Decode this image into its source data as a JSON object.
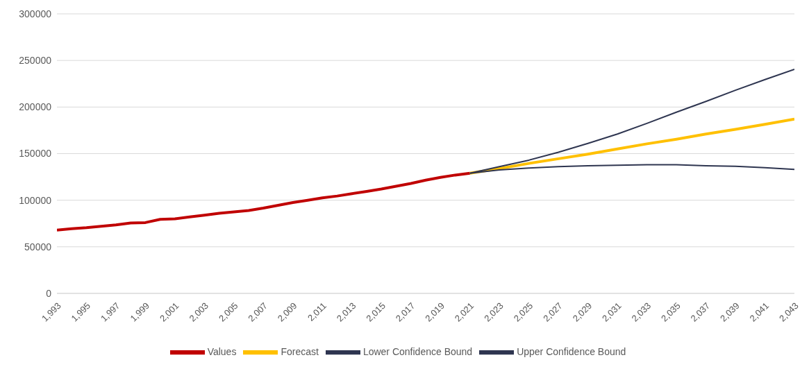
{
  "chart_data": {
    "type": "line",
    "xlim": [
      1993,
      2043
    ],
    "xticks": [
      {
        "value": 1993,
        "label": "1,993"
      },
      {
        "value": 1995,
        "label": "1,995"
      },
      {
        "value": 1997,
        "label": "1,997"
      },
      {
        "value": 1999,
        "label": "1,999"
      },
      {
        "value": 2001,
        "label": "2,001"
      },
      {
        "value": 2003,
        "label": "2,003"
      },
      {
        "value": 2005,
        "label": "2,005"
      },
      {
        "value": 2007,
        "label": "2,007"
      },
      {
        "value": 2009,
        "label": "2,009"
      },
      {
        "value": 2011,
        "label": "2,011"
      },
      {
        "value": 2013,
        "label": "2,013"
      },
      {
        "value": 2015,
        "label": "2,015"
      },
      {
        "value": 2017,
        "label": "2,017"
      },
      {
        "value": 2019,
        "label": "2,019"
      },
      {
        "value": 2021,
        "label": "2,021"
      },
      {
        "value": 2023,
        "label": "2,023"
      },
      {
        "value": 2025,
        "label": "2,025"
      },
      {
        "value": 2027,
        "label": "2,027"
      },
      {
        "value": 2029,
        "label": "2,029"
      },
      {
        "value": 2031,
        "label": "2,031"
      },
      {
        "value": 2033,
        "label": "2,033"
      },
      {
        "value": 2035,
        "label": "2,035"
      },
      {
        "value": 2037,
        "label": "2,037"
      },
      {
        "value": 2039,
        "label": "2,039"
      },
      {
        "value": 2041,
        "label": "2,041"
      },
      {
        "value": 2043,
        "label": "2,043"
      }
    ],
    "ylim": [
      0,
      300000
    ],
    "yticks": [
      0,
      50000,
      100000,
      150000,
      200000,
      250000,
      300000
    ],
    "grid": "y",
    "legend": "bottom",
    "marker": "none",
    "line_style": "solid",
    "series": [
      {
        "name": "Values",
        "color": "#c00000",
        "x": [
          1993,
          1994,
          1995,
          1996,
          1997,
          1998,
          1999,
          2000,
          2001,
          2002,
          2003,
          2004,
          2005,
          2006,
          2007,
          2008,
          2009,
          2010,
          2011,
          2012,
          2013,
          2014,
          2015,
          2016,
          2017,
          2018,
          2019,
          2020,
          2021
        ],
        "values": [
          68000,
          69500,
          70500,
          72000,
          73500,
          75500,
          76000,
          79500,
          80000,
          82000,
          84000,
          86000,
          87500,
          89000,
          91500,
          94500,
          97500,
          100000,
          102500,
          104500,
          107000,
          109500,
          112000,
          115000,
          118000,
          121500,
          124500,
          127000,
          129000
        ]
      },
      {
        "name": "Forecast",
        "color": "#ffc000",
        "x": [
          2021,
          2023,
          2025,
          2027,
          2029,
          2031,
          2033,
          2035,
          2037,
          2039,
          2041,
          2043
        ],
        "values": [
          129000,
          134000,
          139500,
          144500,
          149500,
          155000,
          160500,
          165500,
          171000,
          176000,
          181500,
          187000
        ]
      },
      {
        "name": "Lower Confidence Bound",
        "color": "#2e3550",
        "x": [
          2021,
          2023,
          2025,
          2027,
          2029,
          2031,
          2033,
          2035,
          2037,
          2039,
          2041,
          2043
        ],
        "values": [
          129000,
          132500,
          134500,
          136000,
          137000,
          137500,
          138000,
          138000,
          137000,
          136500,
          135000,
          133000
        ]
      },
      {
        "name": "Upper Confidence Bound",
        "color": "#2e3550",
        "x": [
          2021,
          2023,
          2025,
          2027,
          2029,
          2031,
          2033,
          2035,
          2037,
          2039,
          2041,
          2043
        ],
        "values": [
          129000,
          136000,
          143000,
          151500,
          161000,
          171000,
          182500,
          194500,
          206000,
          218000,
          229500,
          240500
        ]
      }
    ]
  }
}
